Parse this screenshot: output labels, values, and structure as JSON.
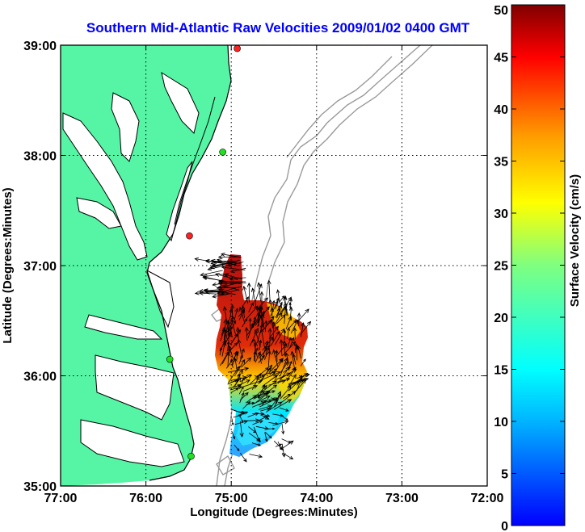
{
  "chart_data": {
    "type": "map",
    "title": "Southern Mid-Atlantic Raw Velocities 2009/01/02 0400 GMT",
    "xlabel": "Longitude (Degrees:Minutes)",
    "ylabel": "Latitude (Degrees:Minutes)",
    "xlim": [
      -77,
      -72
    ],
    "ylim": [
      35,
      39
    ],
    "x_ticks": [
      -77,
      -76,
      -75,
      -74,
      -73,
      -72
    ],
    "x_tick_labels": [
      "77:00",
      "76:00",
      "75:00",
      "74:00",
      "73:00",
      "72:00"
    ],
    "y_ticks": [
      35,
      36,
      37,
      38,
      39
    ],
    "y_tick_labels": [
      "35:00",
      "36:00",
      "37:00",
      "38:00",
      "39:00"
    ],
    "grid": true,
    "colorbar": {
      "label": "Surface Velocity (cm/s)",
      "min": 0,
      "max": 50,
      "ticks": [
        0,
        5,
        10,
        15,
        20,
        25,
        30,
        35,
        40,
        45,
        50
      ],
      "colormap": "jet"
    },
    "colors": {
      "land": "#55f5a5",
      "title": "#0000ff",
      "isobath": "#9a9a9a",
      "grid": "#000000"
    },
    "sites": [
      {
        "lon": -74.93,
        "lat": 38.97,
        "status": "red"
      },
      {
        "lon": -75.1,
        "lat": 38.03,
        "status": "green"
      },
      {
        "lon": -75.49,
        "lat": 37.27,
        "status": "red"
      },
      {
        "lon": -75.72,
        "lat": 36.15,
        "status": "green"
      },
      {
        "lon": -75.47,
        "lat": 35.27,
        "status": "green"
      }
    ],
    "velocity_cells": [
      {
        "lon": -74.9,
        "lat": 36.75,
        "v": 45
      },
      {
        "lon": -74.85,
        "lat": 36.45,
        "v": 45
      },
      {
        "lon": -74.75,
        "lat": 36.3,
        "v": 42
      },
      {
        "lon": -74.55,
        "lat": 36.35,
        "v": 30
      },
      {
        "lon": -74.35,
        "lat": 36.3,
        "v": 25
      },
      {
        "lon": -74.7,
        "lat": 36.0,
        "v": 40
      },
      {
        "lon": -74.45,
        "lat": 36.05,
        "v": 35
      },
      {
        "lon": -74.25,
        "lat": 36.05,
        "v": 20
      },
      {
        "lon": -74.75,
        "lat": 35.8,
        "v": 45
      },
      {
        "lon": -74.55,
        "lat": 35.85,
        "v": 38
      },
      {
        "lon": -74.35,
        "lat": 35.85,
        "v": 28
      },
      {
        "lon": -74.65,
        "lat": 35.6,
        "v": 18
      },
      {
        "lon": -74.5,
        "lat": 35.55,
        "v": 10
      },
      {
        "lon": -74.75,
        "lat": 35.4,
        "v": 12
      },
      {
        "lon": -74.9,
        "lat": 35.3,
        "v": 20
      }
    ]
  }
}
